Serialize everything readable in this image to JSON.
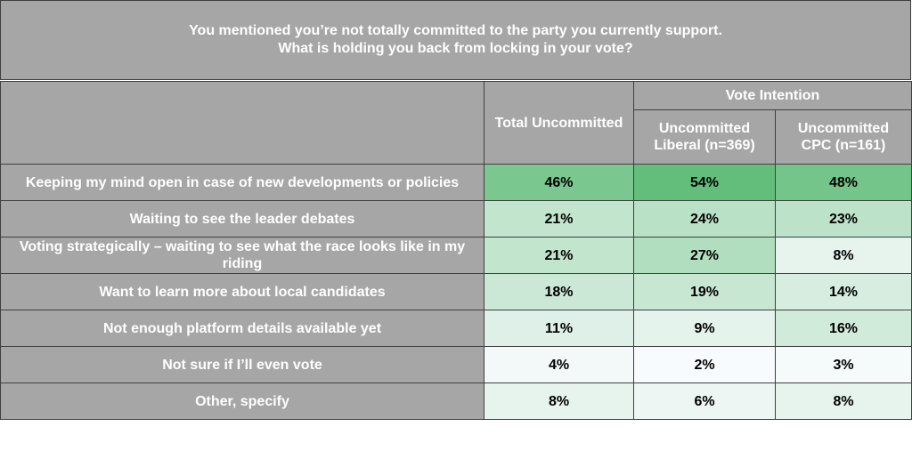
{
  "title": {
    "line1": "You mentioned you’re not totally committed to the party you currently support.",
    "line2": "What is holding you back from locking in your vote?"
  },
  "header": {
    "col_total": "Total Uncommitted",
    "group": "Vote Intention",
    "col_liberal": "Uncommitted Liberal (n=369)",
    "col_cpc": "Uncommitted CPC (n=161)"
  },
  "rows": [
    {
      "label": "Keeping my mind open in case of new developments or policies",
      "total": "46%",
      "liberal": "54%",
      "cpc": "48%"
    },
    {
      "label": "Waiting to see the leader debates",
      "total": "21%",
      "liberal": "24%",
      "cpc": "23%"
    },
    {
      "label": "Voting strategically – waiting to see what the race looks like in my riding",
      "total": "21%",
      "liberal": "27%",
      "cpc": "8%"
    },
    {
      "label": "Want to learn more about local candidates",
      "total": "18%",
      "liberal": "19%",
      "cpc": "14%"
    },
    {
      "label": "Not enough platform details available yet",
      "total": "11%",
      "liberal": "9%",
      "cpc": "16%"
    },
    {
      "label": "Not sure if I’ll even vote",
      "total": "4%",
      "liberal": "2%",
      "cpc": "3%"
    },
    {
      "label": "Other, specify",
      "total": "8%",
      "liberal": "6%",
      "cpc": "8%"
    }
  ],
  "chart_data": {
    "type": "table",
    "title": "You mentioned you’re not totally committed to the party you currently support. What is holding you back from locking in your vote?",
    "columns": [
      "Total Uncommitted",
      "Uncommitted Liberal (n=369)",
      "Uncommitted CPC (n=161)"
    ],
    "column_group": "Vote Intention",
    "categories": [
      "Keeping my mind open in case of new developments or policies",
      "Waiting to see the leader debates",
      "Voting strategically – waiting to see what the race looks like in my riding",
      "Want to learn more about local candidates",
      "Not enough platform details available yet",
      "Not sure if I’ll even vote",
      "Other, specify"
    ],
    "series": [
      {
        "name": "Total Uncommitted",
        "values": [
          46,
          21,
          21,
          18,
          11,
          4,
          8
        ]
      },
      {
        "name": "Uncommitted Liberal (n=369)",
        "values": [
          54,
          24,
          27,
          19,
          9,
          2,
          6
        ]
      },
      {
        "name": "Uncommitted CPC (n=161)",
        "values": [
          48,
          23,
          8,
          14,
          16,
          3,
          8
        ]
      }
    ],
    "unit": "%",
    "colors": {
      "header_bg": "#a6a6a6",
      "heat_high": "#63be7b",
      "heat_low": "#f8fbfd"
    }
  }
}
